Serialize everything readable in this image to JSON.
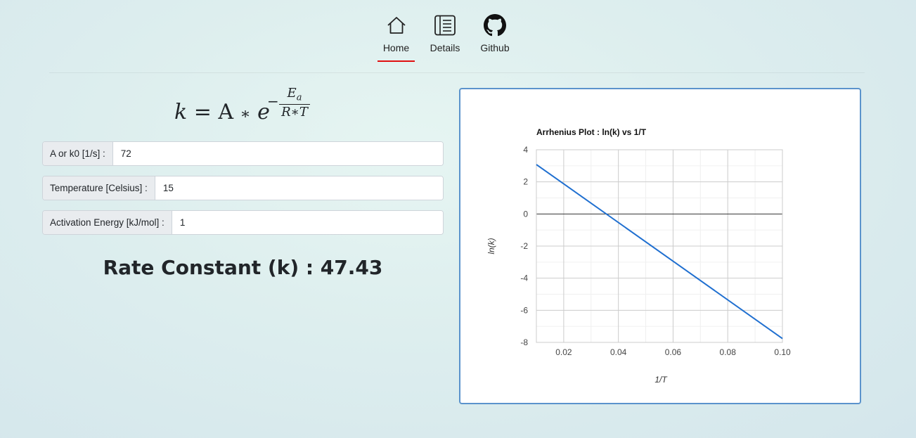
{
  "nav": {
    "items": [
      {
        "label": "Home",
        "icon": "home-icon",
        "active": true
      },
      {
        "label": "Details",
        "icon": "details-icon",
        "active": false
      },
      {
        "label": "Github",
        "icon": "github-icon",
        "active": false
      }
    ],
    "active_color": "#e01010"
  },
  "formula": {
    "lhs": "k",
    "equals": "=",
    "A": "A",
    "times": "∗",
    "e": "e",
    "minus": "−",
    "numerator": "E",
    "numerator_sub": "a",
    "denominator": "R∗T"
  },
  "form": {
    "a_label": "A or k0 [1/s] :",
    "a_value": "72",
    "temp_label": "Temperature [Celsius] :",
    "temp_value": "15",
    "energy_label": "Activation Energy [kJ/mol] :",
    "energy_value": "1"
  },
  "result": {
    "text": "Rate Constant (k) : 47.43"
  },
  "chart_data": {
    "type": "line",
    "title": "Arrhenius Plot : ln(k) vs 1/T",
    "xlabel": "1/T",
    "ylabel": "ln(k)",
    "xlim": [
      0.01,
      0.1
    ],
    "ylim": [
      -8,
      4
    ],
    "xticks": [
      0.02,
      0.04,
      0.06,
      0.08,
      0.1
    ],
    "xtick_labels": [
      "0.02",
      "0.04",
      "0.06",
      "0.08",
      "0.10"
    ],
    "yticks": [
      4,
      2,
      0,
      -2,
      -4,
      -6,
      -8
    ],
    "grid": true,
    "line_color": "#1f6fd0",
    "series": [
      {
        "x": [
          0.01,
          0.1
        ],
        "y": [
          3.08,
          -7.76
        ]
      }
    ]
  }
}
